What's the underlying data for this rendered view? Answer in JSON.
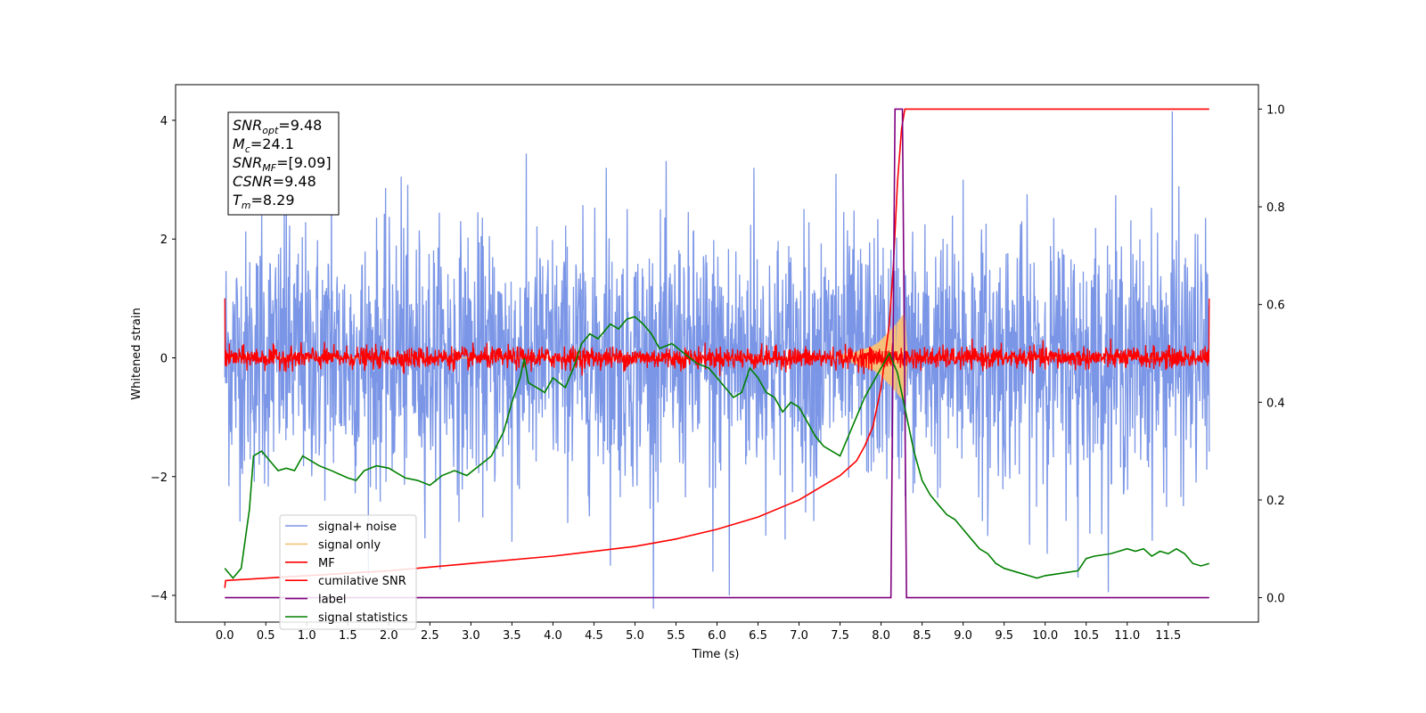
{
  "chart_data": {
    "type": "line",
    "xlabel": "Time (s)",
    "ylabel": "Whitened strain",
    "xlim": [
      -0.6,
      12.6
    ],
    "ylim": [
      -4.45,
      4.6
    ],
    "y2lim": [
      -0.05,
      1.05
    ],
    "x_ticks": [
      0.0,
      0.5,
      1.0,
      1.5,
      2.0,
      2.5,
      3.0,
      3.5,
      4.0,
      4.5,
      5.0,
      5.5,
      6.0,
      6.5,
      7.0,
      7.5,
      8.0,
      8.5,
      9.0,
      9.5,
      10.0,
      10.5,
      11.0,
      11.5
    ],
    "x_tick_labels": [
      "0.0",
      "0.5",
      "1.0",
      "1.5",
      "2.0",
      "2.5",
      "3.0",
      "3.5",
      "4.0",
      "4.5",
      "5.0",
      "5.5",
      "6.0",
      "6.5",
      "7.0",
      "7.5",
      "8.0",
      "8.5",
      "9.0",
      "9.5",
      "10.0",
      "10.5",
      "11.0",
      "11.5"
    ],
    "y_ticks": [
      -4,
      -2,
      0,
      2,
      4
    ],
    "y_tick_labels": [
      "−4",
      "−2",
      "0",
      "2",
      "4"
    ],
    "y2_ticks": [
      0.0,
      0.2,
      0.4,
      0.6,
      0.8,
      1.0
    ],
    "y2_tick_labels": [
      "0.0",
      "0.2",
      "0.4",
      "0.6",
      "0.8",
      "1.0"
    ],
    "grid": false,
    "legend_position": "lower-left",
    "annotation": {
      "lines": [
        {
          "base": "SNR",
          "sub": "opt",
          "value": "=9.48"
        },
        {
          "base": "M",
          "sub": "c",
          "value": "=24.1"
        },
        {
          "base": "SNR",
          "sub": "MF",
          "value": "=[9.09]"
        },
        {
          "base": "CSNR",
          "sub": "",
          "value": "=9.48"
        },
        {
          "base": "T",
          "sub": "m",
          "value": "=8.29"
        }
      ]
    },
    "series": [
      {
        "name": "signal+ noise",
        "color": "#7b96e6",
        "axis": "left",
        "kind": "noise",
        "x_range": [
          0.0,
          12.0
        ],
        "amplitude_sigma": 1.05,
        "peak_spikes": [
          [
            0.45,
            2.4
          ],
          [
            0.75,
            2.9
          ],
          [
            1.3,
            3.1
          ],
          [
            2.15,
            3.05
          ],
          [
            4.65,
            3.2
          ],
          [
            6.45,
            3.2
          ],
          [
            7.45,
            3.1
          ],
          [
            9.0,
            3.0
          ],
          [
            11.55,
            4.15
          ],
          [
            6.15,
            -4.0
          ],
          [
            4.7,
            -3.5
          ],
          [
            5.95,
            -3.6
          ],
          [
            3.5,
            -3.1
          ],
          [
            10.4,
            -3.7
          ],
          [
            9.3,
            -3.0
          ]
        ]
      },
      {
        "name": "signal only",
        "color": "#f5c07a",
        "axis": "left",
        "kind": "chirp",
        "x": [
          7.5,
          7.7,
          7.9,
          8.0,
          8.1,
          8.2,
          8.25,
          8.29,
          8.32
        ],
        "envelope": [
          0.05,
          0.1,
          0.2,
          0.3,
          0.45,
          0.6,
          0.7,
          0.75,
          0.0
        ]
      },
      {
        "name": "MF",
        "color": "#ff0000",
        "axis": "left",
        "kind": "noise",
        "x_range": [
          0.0,
          12.0
        ],
        "amplitude_sigma": 0.09,
        "edge_values": [
          [
            0.0,
            1.0
          ],
          [
            12.0,
            1.0
          ]
        ]
      },
      {
        "name": "cumilative SNR",
        "color": "#ff0000",
        "axis": "right",
        "x": [
          0.0,
          0.01,
          0.5,
          1.0,
          2.0,
          3.0,
          4.0,
          5.0,
          5.5,
          6.0,
          6.5,
          7.0,
          7.5,
          7.7,
          7.8,
          7.9,
          8.0,
          8.1,
          8.15,
          8.2,
          8.25,
          8.29,
          8.35,
          10.0,
          12.0
        ],
        "values": [
          0.02,
          0.035,
          0.04,
          0.045,
          0.055,
          0.07,
          0.085,
          0.105,
          0.12,
          0.14,
          0.165,
          0.2,
          0.25,
          0.28,
          0.31,
          0.35,
          0.43,
          0.56,
          0.68,
          0.85,
          0.96,
          1.0,
          1.0,
          1.0,
          1.0
        ]
      },
      {
        "name": "label",
        "color": "#800080",
        "axis": "right",
        "x": [
          0.0,
          8.12,
          8.17,
          8.26,
          8.31,
          12.0
        ],
        "values": [
          0.0,
          0.0,
          1.0,
          1.0,
          0.0,
          0.0
        ]
      },
      {
        "name": "signal statistics",
        "color": "#008000",
        "axis": "right",
        "x": [
          0.0,
          0.1,
          0.2,
          0.3,
          0.35,
          0.45,
          0.55,
          0.65,
          0.75,
          0.85,
          0.95,
          1.05,
          1.15,
          1.3,
          1.5,
          1.6,
          1.7,
          1.85,
          2.0,
          2.1,
          2.2,
          2.35,
          2.5,
          2.65,
          2.8,
          2.95,
          3.1,
          3.25,
          3.4,
          3.5,
          3.6,
          3.65,
          3.7,
          3.8,
          3.9,
          4.0,
          4.15,
          4.25,
          4.35,
          4.45,
          4.55,
          4.7,
          4.8,
          4.9,
          5.0,
          5.1,
          5.2,
          5.3,
          5.45,
          5.6,
          5.75,
          5.9,
          6.0,
          6.1,
          6.2,
          6.3,
          6.4,
          6.5,
          6.6,
          6.7,
          6.8,
          6.9,
          7.0,
          7.1,
          7.2,
          7.3,
          7.4,
          7.5,
          7.6,
          7.7,
          7.8,
          7.9,
          8.0,
          8.1,
          8.2,
          8.3,
          8.4,
          8.5,
          8.6,
          8.7,
          8.8,
          8.9,
          9.0,
          9.1,
          9.2,
          9.3,
          9.4,
          9.5,
          9.6,
          9.7,
          9.8,
          9.9,
          10.0,
          10.2,
          10.4,
          10.5,
          10.6,
          10.8,
          11.0,
          11.1,
          11.2,
          11.3,
          11.4,
          11.5,
          11.6,
          11.7,
          11.8,
          11.9,
          12.0
        ],
        "values": [
          0.06,
          0.04,
          0.06,
          0.18,
          0.29,
          0.3,
          0.28,
          0.26,
          0.265,
          0.26,
          0.29,
          0.28,
          0.27,
          0.26,
          0.245,
          0.24,
          0.26,
          0.27,
          0.265,
          0.255,
          0.245,
          0.24,
          0.23,
          0.25,
          0.26,
          0.25,
          0.27,
          0.29,
          0.34,
          0.4,
          0.45,
          0.49,
          0.44,
          0.43,
          0.42,
          0.45,
          0.43,
          0.47,
          0.52,
          0.54,
          0.53,
          0.56,
          0.55,
          0.57,
          0.575,
          0.56,
          0.54,
          0.51,
          0.52,
          0.5,
          0.48,
          0.47,
          0.45,
          0.43,
          0.41,
          0.42,
          0.47,
          0.45,
          0.42,
          0.41,
          0.38,
          0.4,
          0.39,
          0.36,
          0.33,
          0.31,
          0.3,
          0.29,
          0.33,
          0.37,
          0.41,
          0.44,
          0.47,
          0.5,
          0.46,
          0.38,
          0.3,
          0.24,
          0.21,
          0.19,
          0.17,
          0.16,
          0.14,
          0.12,
          0.1,
          0.09,
          0.07,
          0.06,
          0.055,
          0.05,
          0.045,
          0.04,
          0.045,
          0.05,
          0.055,
          0.08,
          0.085,
          0.09,
          0.1,
          0.095,
          0.1,
          0.085,
          0.095,
          0.09,
          0.1,
          0.09,
          0.07,
          0.065,
          0.07
        ]
      }
    ]
  }
}
